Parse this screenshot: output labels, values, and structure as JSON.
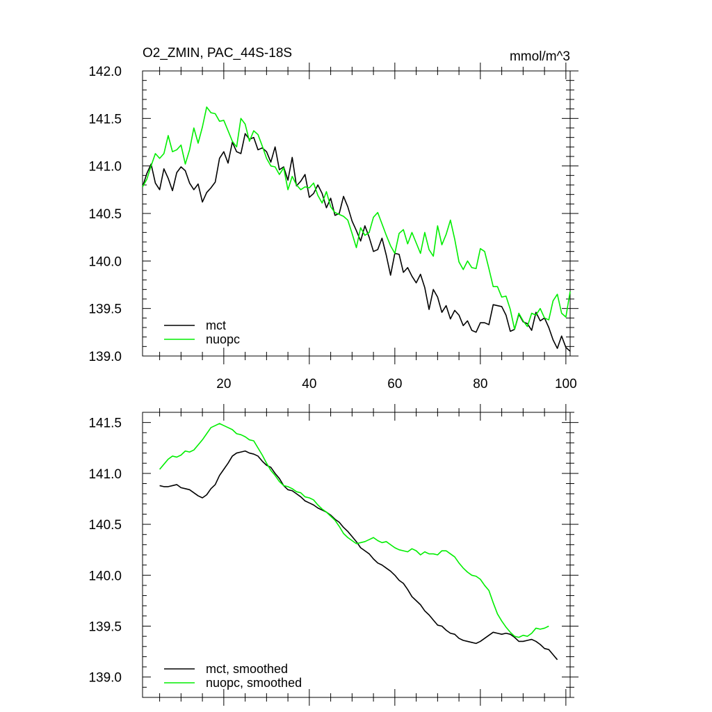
{
  "chart_data": [
    {
      "type": "line",
      "title": "O2_ZMIN, PAC_44S-18S",
      "units": "mmol/m^3",
      "xlabel": "",
      "ylabel": "",
      "xlim": [
        1,
        101
      ],
      "ylim": [
        139.0,
        142.0
      ],
      "x_ticks": [
        20,
        40,
        60,
        80,
        100
      ],
      "y_ticks": [
        "139.0",
        "139.5",
        "140.0",
        "140.5",
        "141.0",
        "141.5",
        "142.0"
      ],
      "legend_position": "bottom-left",
      "x_start": 1,
      "series": [
        {
          "name": "mct",
          "color": "#000000",
          "values": [
            140.78,
            140.92,
            141.02,
            140.82,
            140.75,
            140.97,
            140.87,
            140.74,
            140.93,
            140.99,
            140.95,
            140.82,
            140.75,
            140.81,
            140.62,
            140.72,
            140.77,
            140.83,
            141.08,
            141.15,
            141.03,
            141.25,
            141.15,
            141.13,
            141.34,
            141.28,
            141.3,
            141.17,
            141.19,
            141.15,
            141.04,
            141.2,
            140.96,
            140.99,
            140.85,
            141.09,
            140.79,
            140.84,
            140.91,
            140.67,
            140.71,
            140.8,
            140.71,
            140.56,
            140.66,
            140.48,
            140.5,
            140.68,
            140.57,
            140.42,
            140.32,
            140.21,
            140.37,
            140.25,
            140.1,
            140.12,
            140.24,
            140.06,
            139.85,
            140.08,
            140.07,
            139.88,
            139.93,
            139.84,
            139.77,
            139.86,
            139.72,
            139.49,
            139.7,
            139.62,
            139.46,
            139.53,
            139.39,
            139.48,
            139.43,
            139.32,
            139.37,
            139.27,
            139.25,
            139.35,
            139.35,
            139.33,
            139.54,
            139.53,
            139.52,
            139.43,
            139.26,
            139.28,
            139.44,
            139.36,
            139.34,
            139.27,
            139.46,
            139.37,
            139.4,
            139.3,
            139.17,
            139.08,
            139.21,
            139.09,
            139.05
          ]
        },
        {
          "name": "nuopc",
          "color": "#00ee00",
          "values": [
            140.78,
            140.86,
            141.0,
            141.13,
            141.08,
            141.13,
            141.32,
            141.15,
            141.17,
            141.22,
            141.02,
            141.17,
            141.4,
            141.24,
            141.41,
            141.62,
            141.56,
            141.55,
            141.47,
            141.48,
            141.37,
            141.26,
            141.2,
            141.5,
            141.44,
            141.26,
            141.37,
            141.33,
            141.21,
            141.08,
            141.0,
            140.99,
            140.91,
            140.98,
            140.75,
            140.89,
            140.8,
            140.75,
            140.78,
            140.77,
            140.82,
            140.69,
            140.61,
            140.73,
            140.57,
            140.51,
            140.49,
            140.47,
            140.43,
            140.29,
            140.14,
            140.35,
            140.27,
            140.3,
            140.46,
            140.51,
            140.39,
            140.27,
            140.16,
            140.08,
            140.29,
            140.33,
            140.18,
            140.3,
            140.19,
            140.08,
            140.3,
            140.12,
            140.05,
            140.37,
            140.17,
            140.28,
            140.43,
            140.23,
            139.99,
            139.91,
            140.0,
            139.93,
            139.92,
            140.13,
            140.1,
            139.92,
            139.73,
            139.73,
            139.62,
            139.63,
            139.49,
            139.28,
            139.45,
            139.37,
            139.31,
            139.45,
            139.43,
            139.5,
            139.4,
            139.38,
            139.58,
            139.65,
            139.45,
            139.41,
            139.68
          ]
        }
      ]
    },
    {
      "type": "line",
      "title": "",
      "xlabel": "",
      "ylabel": "",
      "xlim": [
        1,
        101
      ],
      "ylim": [
        138.8,
        141.6
      ],
      "y_ticks": [
        "139.0",
        "139.5",
        "140.0",
        "140.5",
        "141.0",
        "141.5"
      ],
      "legend_position": "bottom-left",
      "x_start": 5,
      "series": [
        {
          "name": "mct, smoothed",
          "color": "#000000",
          "values": [
            140.88,
            140.87,
            140.87,
            140.88,
            140.89,
            140.86,
            140.85,
            140.84,
            140.81,
            140.78,
            140.76,
            140.79,
            140.85,
            140.89,
            140.98,
            141.04,
            141.1,
            141.17,
            141.2,
            141.21,
            141.22,
            141.2,
            141.19,
            141.17,
            141.12,
            141.08,
            141.06,
            141.0,
            140.95,
            140.88,
            140.84,
            140.83,
            140.8,
            140.77,
            140.73,
            140.71,
            140.69,
            140.66,
            140.64,
            140.62,
            140.59,
            140.55,
            140.52,
            140.47,
            140.43,
            140.38,
            140.33,
            140.27,
            140.24,
            140.21,
            140.16,
            140.12,
            140.1,
            140.07,
            140.04,
            140.0,
            139.95,
            139.92,
            139.86,
            139.79,
            139.75,
            139.71,
            139.65,
            139.61,
            139.56,
            139.51,
            139.5,
            139.46,
            139.43,
            139.42,
            139.38,
            139.36,
            139.35,
            139.34,
            139.33,
            139.35,
            139.38,
            139.41,
            139.44,
            139.43,
            139.42,
            139.43,
            139.42,
            139.39,
            139.35,
            139.35,
            139.36,
            139.37,
            139.35,
            139.32,
            139.28,
            139.27,
            139.22,
            139.17
          ]
        },
        {
          "name": "nuopc, smoothed",
          "color": "#00ee00",
          "values": [
            141.04,
            141.09,
            141.14,
            141.17,
            141.16,
            141.18,
            141.22,
            141.21,
            141.23,
            141.28,
            141.33,
            141.39,
            141.45,
            141.47,
            141.49,
            141.47,
            141.45,
            141.43,
            141.39,
            141.38,
            141.36,
            141.33,
            141.32,
            141.25,
            141.18,
            141.1,
            141.03,
            140.98,
            140.92,
            140.88,
            140.87,
            140.85,
            140.82,
            140.81,
            140.77,
            140.76,
            140.74,
            140.69,
            140.65,
            140.62,
            140.58,
            140.54,
            140.48,
            140.41,
            140.37,
            140.34,
            140.31,
            140.32,
            140.33,
            140.35,
            140.37,
            140.34,
            140.32,
            140.33,
            140.3,
            140.27,
            140.25,
            140.24,
            140.23,
            140.26,
            140.24,
            140.2,
            140.23,
            140.21,
            140.21,
            140.2,
            140.24,
            140.24,
            140.21,
            140.18,
            140.12,
            140.07,
            140.03,
            140.0,
            139.99,
            139.96,
            139.9,
            139.85,
            139.73,
            139.62,
            139.55,
            139.49,
            139.44,
            139.4,
            139.39,
            139.41,
            139.4,
            139.43,
            139.48,
            139.47,
            139.48,
            139.5
          ]
        }
      ]
    }
  ]
}
